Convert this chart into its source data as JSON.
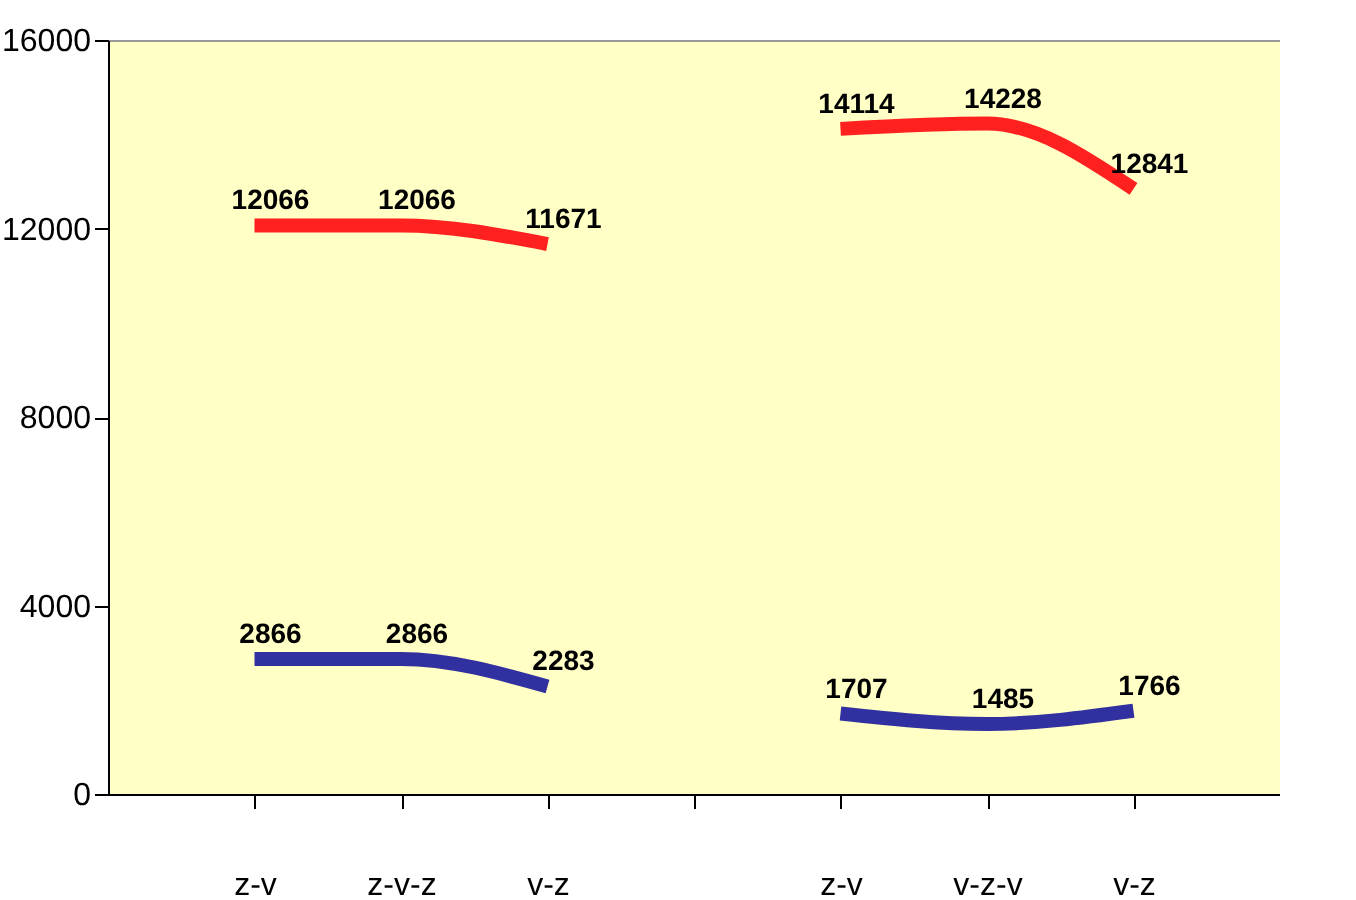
{
  "chart_data": {
    "type": "line",
    "categories": [
      "z-v",
      "z-v-z",
      "v-z",
      null,
      "z-v",
      "v-z-v",
      "v-z"
    ],
    "series": [
      {
        "color": "#ff2020",
        "values": [
          12066,
          12066,
          11671,
          null,
          14114,
          14228,
          12841
        ]
      },
      {
        "color": "#3030a0",
        "values": [
          2866,
          2866,
          2283,
          null,
          1707,
          1485,
          1766
        ]
      }
    ],
    "ylim": [
      0,
      16000
    ],
    "yticks": [
      0,
      4000,
      8000,
      12000,
      16000
    ],
    "grid": false,
    "legend": false,
    "marker": "none",
    "line_style": "solid",
    "data_labels": true
  }
}
